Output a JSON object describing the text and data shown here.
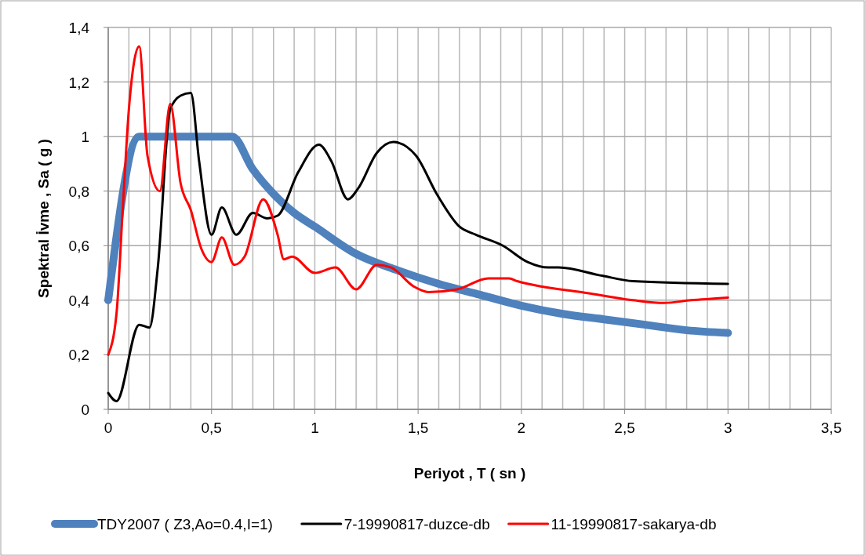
{
  "chart_data": {
    "type": "line",
    "xlabel": "Periyot  , T ( sn )",
    "ylabel": "Spektral İvme , Sa ( g )",
    "xlim": [
      0,
      3.5
    ],
    "ylim": [
      0,
      1.4
    ],
    "xticks": [
      0,
      {
        "value": 0.1,
        "label": null
      },
      {
        "value": 0.2,
        "label": null
      },
      {
        "value": 0.3,
        "label": null
      },
      {
        "value": 0.4,
        "label": null
      },
      {
        "value": 0.5,
        "label": "0,5"
      },
      {
        "value": 0.6,
        "label": null
      },
      {
        "value": 0.7,
        "label": null
      },
      {
        "value": 0.8,
        "label": null
      },
      {
        "value": 0.9,
        "label": null
      },
      1,
      {
        "value": 1.1,
        "label": null
      },
      {
        "value": 1.2,
        "label": null
      },
      {
        "value": 1.3,
        "label": null
      },
      {
        "value": 1.4,
        "label": null
      },
      {
        "value": 1.5,
        "label": "1,5"
      },
      {
        "value": 1.6,
        "label": null
      },
      {
        "value": 1.7,
        "label": null
      },
      {
        "value": 1.8,
        "label": null
      },
      {
        "value": 1.9,
        "label": null
      },
      2,
      {
        "value": 2.1,
        "label": null
      },
      {
        "value": 2.2,
        "label": null
      },
      {
        "value": 2.3,
        "label": null
      },
      {
        "value": 2.4,
        "label": null
      },
      {
        "value": 2.5,
        "label": "2,5"
      },
      {
        "value": 2.6,
        "label": null
      },
      {
        "value": 2.7,
        "label": null
      },
      {
        "value": 2.8,
        "label": null
      },
      {
        "value": 2.9,
        "label": null
      },
      3,
      {
        "value": 3.1,
        "label": null
      },
      {
        "value": 3.2,
        "label": null
      },
      {
        "value": 3.3,
        "label": null
      },
      {
        "value": 3.4,
        "label": null
      },
      {
        "value": 3.5,
        "label": "3,5"
      }
    ],
    "yticks": [
      0,
      {
        "value": 0.2,
        "label": "0,2"
      },
      {
        "value": 0.4,
        "label": "0,4"
      },
      {
        "value": 0.6,
        "label": "0,6"
      },
      {
        "value": 0.8,
        "label": "0,8"
      },
      1,
      {
        "value": 1.2,
        "label": "1,2"
      },
      {
        "value": 1.4,
        "label": "1,4"
      }
    ],
    "grid": true,
    "legend": "bottom",
    "series": [
      {
        "name": "TDY2007 ( Z3,Ao=0.4,I=1)",
        "color": "#4f81bd",
        "x": [
          0,
          0.15,
          0.6,
          0.7,
          0.8,
          0.9,
          1.0,
          1.2,
          1.4,
          1.6,
          1.8,
          2.0,
          2.2,
          2.4,
          2.6,
          2.8,
          3.0
        ],
        "values": [
          0.4,
          1.0,
          1.0,
          0.88,
          0.79,
          0.72,
          0.67,
          0.57,
          0.51,
          0.46,
          0.42,
          0.38,
          0.35,
          0.33,
          0.31,
          0.29,
          0.28
        ]
      },
      {
        "name": "7-19990817-duzce-db",
        "color": "#000000",
        "x": [
          0,
          0.04,
          0.15,
          0.2,
          0.24,
          0.3,
          0.35,
          0.4,
          0.44,
          0.5,
          0.55,
          0.62,
          0.7,
          0.77,
          0.82,
          0.92,
          1.02,
          1.08,
          1.16,
          1.21,
          1.3,
          1.38,
          1.49,
          1.59,
          1.7,
          1.78,
          1.91,
          2.03,
          2.13,
          2.18,
          2.39,
          2.54,
          3.0
        ],
        "values": [
          0.06,
          0.03,
          0.31,
          0.3,
          0.52,
          1.1,
          1.15,
          1.16,
          0.91,
          0.64,
          0.74,
          0.64,
          0.72,
          0.7,
          0.71,
          0.87,
          0.97,
          0.91,
          0.77,
          0.81,
          0.94,
          0.98,
          0.93,
          0.79,
          0.67,
          0.64,
          0.6,
          0.54,
          0.52,
          0.52,
          0.49,
          0.47,
          0.46
        ]
      },
      {
        "name": "11-19990817-sakarya-db",
        "color": "#ff0000",
        "x": [
          0,
          0.04,
          0.07,
          0.1,
          0.15,
          0.19,
          0.25,
          0.3,
          0.35,
          0.4,
          0.45,
          0.5,
          0.55,
          0.61,
          0.66,
          0.75,
          0.82,
          0.85,
          0.89,
          1.0,
          1.1,
          1.2,
          1.3,
          1.37,
          1.48,
          1.55,
          1.69,
          1.84,
          1.94,
          1.98,
          2.1,
          2.29,
          2.54,
          2.69,
          2.82,
          3.0
        ],
        "values": [
          0.2,
          0.35,
          0.73,
          1.1,
          1.33,
          0.93,
          0.8,
          1.12,
          0.83,
          0.73,
          0.59,
          0.54,
          0.63,
          0.53,
          0.56,
          0.77,
          0.64,
          0.55,
          0.56,
          0.5,
          0.52,
          0.44,
          0.53,
          0.52,
          0.45,
          0.43,
          0.44,
          0.48,
          0.48,
          0.47,
          0.45,
          0.43,
          0.4,
          0.39,
          0.4,
          0.41
        ]
      }
    ]
  }
}
